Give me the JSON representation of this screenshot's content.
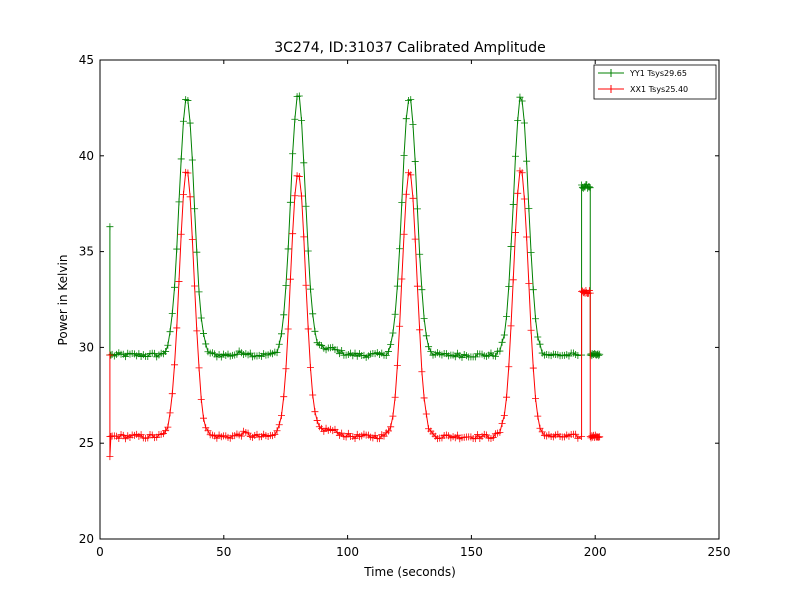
{
  "chart_data": {
    "type": "line",
    "title": "3C274, ID:31037 Calibrated Amplitude",
    "xlabel": "Time (seconds)",
    "ylabel": "Power in Kelvin",
    "xlim": [
      0,
      250
    ],
    "ylim": [
      20,
      45
    ],
    "xticks": [
      0,
      50,
      100,
      150,
      200,
      250
    ],
    "yticks": [
      20,
      25,
      30,
      35,
      40,
      45
    ],
    "xtick_labels": [
      "0",
      "50",
      "100",
      "150",
      "200",
      "250"
    ],
    "ytick_labels": [
      "20",
      "25",
      "30",
      "35",
      "40",
      "45"
    ],
    "grid": false,
    "legend_position": "top-right",
    "marker": "+",
    "series": [
      {
        "name": "YY1 Tsys29.65",
        "color": "#008000",
        "baseline": 29.6,
        "peaks": [
          {
            "center": 35,
            "height": 43.1
          },
          {
            "center": 80,
            "height": 43.2
          },
          {
            "center": 125,
            "height": 43.1
          },
          {
            "center": 170,
            "height": 43.1
          }
        ],
        "spike": {
          "x": 4,
          "min": 29.6,
          "max": 36.3
        },
        "plateau": {
          "x_start": 194.5,
          "x_end": 198,
          "value": 38.4
        },
        "tail_end": 202,
        "step": 0.9
      },
      {
        "name": "XX1 Tsys25.40",
        "color": "#ff0000",
        "baseline": 25.35,
        "peaks": [
          {
            "center": 35,
            "height": 39.3
          },
          {
            "center": 80,
            "height": 39.2
          },
          {
            "center": 125,
            "height": 39.3
          },
          {
            "center": 170,
            "height": 39.3
          }
        ],
        "spike": {
          "x": 4,
          "min": 24.3,
          "max": 29.6
        },
        "plateau": {
          "x_start": 194.5,
          "x_end": 198,
          "value": 32.9
        },
        "tail_end": 202,
        "step": 0.9
      }
    ]
  }
}
